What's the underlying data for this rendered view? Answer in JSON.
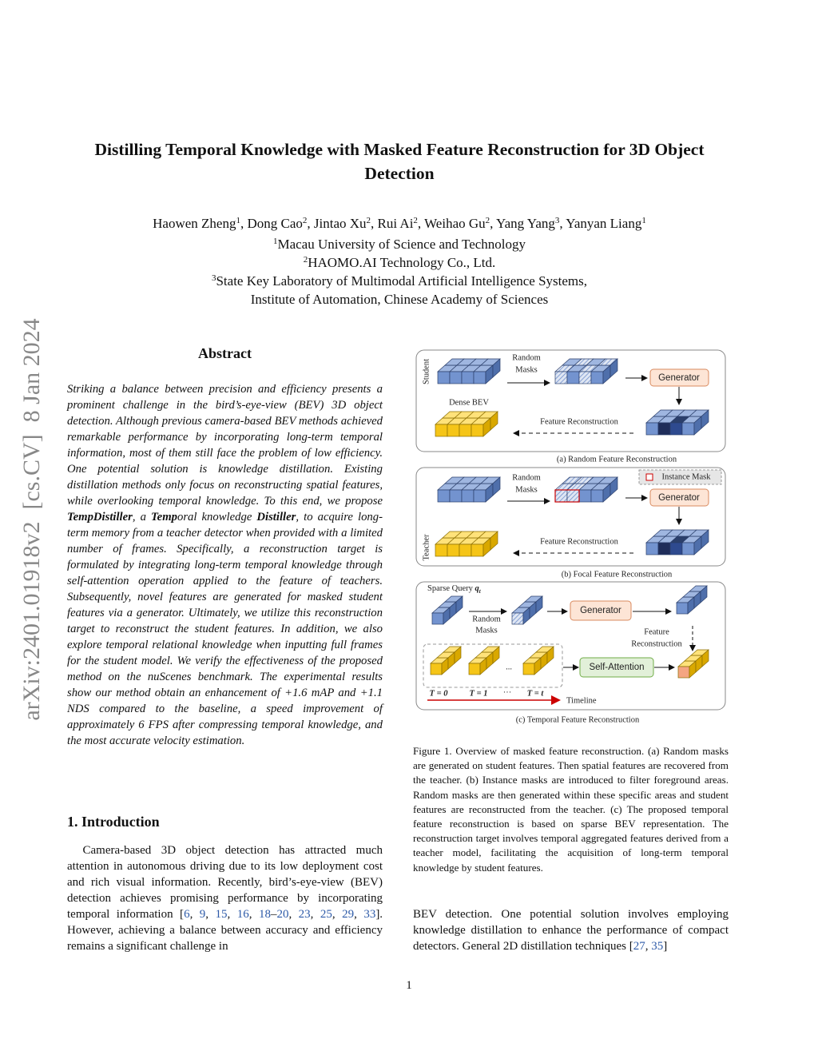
{
  "side_id": "arXiv:2401.01918v2  [cs.CV]  8 Jan 2024",
  "title": "Distilling Temporal Knowledge with Masked Feature Reconstruction for 3D Object Detection",
  "authors": [
    {
      "name": "Haowen Zheng",
      "sup": "1"
    },
    {
      "name": ", Dong Cao",
      "sup": "2"
    },
    {
      "name": ", Jintao Xu",
      "sup": "2"
    },
    {
      "name": ", Rui Ai",
      "sup": "2"
    },
    {
      "name": ", Weihao Gu",
      "sup": "2"
    },
    {
      "name": ", Yang Yang",
      "sup": "3"
    },
    {
      "name": ", Yanyan Liang",
      "sup": "1"
    }
  ],
  "affiliations": [
    {
      "sup": "1",
      "lines": [
        "Macau University of Science and Technology"
      ]
    },
    {
      "sup": "2",
      "lines": [
        "HAOMO.AI Technology Co., Ltd."
      ]
    },
    {
      "sup": "3",
      "lines": [
        "State Key Laboratory of Multimodal Artificial Intelligence Systems,",
        "Institute of Automation, Chinese Academy of Sciences"
      ]
    }
  ],
  "abstract": {
    "heading": "Abstract",
    "segments": [
      {
        "text": "Striking a balance between precision and efficiency presents a prominent challenge in the bird’s-eye-view (BEV) 3D object detection. Although previous camera-based BEV methods achieved remarkable performance by incorporating long-term temporal information, most of them still face the problem of low efficiency.  One potential solution is knowledge distillation.  Existing distillation methods only focus on reconstructing spatial features, while overlooking temporal knowledge.  To this end, we propose "
      },
      {
        "text": "TempDistiller",
        "bold": true
      },
      {
        "text": ", a "
      },
      {
        "text": "Temp",
        "bold": true
      },
      {
        "text": "oral knowledge "
      },
      {
        "text": "Distiller",
        "bold": true
      },
      {
        "text": ", to acquire long-term memory from a teacher detector when provided with a limited number of frames.  Specifically, a reconstruction target is formulated by integrating long-term temporal knowledge through self-attention operation applied to the feature of teachers. Subsequently, novel features are generated for masked student features via a generator.  Ultimately, we utilize this reconstruction target to reconstruct the student features. In addition, we also explore temporal relational knowledge when inputting full frames for the student model. We verify the effectiveness of the proposed method on the nuScenes benchmark.  The experimental results show our method obtain an enhancement of +1.6 mAP and +1.1 NDS compared to the baseline, a speed improvement of approximately 6 FPS after compressing temporal knowledge, and the most accurate velocity estimation."
      }
    ]
  },
  "introduction": {
    "heading": "1. Introduction",
    "segments": [
      {
        "text": "Camera-based 3D object detection has attracted much attention in autonomous driving due to its low deployment cost and rich visual information.  Recently, bird’s-eye-view (BEV) detection achieves promising performance by incorporating temporal information ["
      },
      {
        "text": "6",
        "link": true
      },
      {
        "text": ", "
      },
      {
        "text": "9",
        "link": true
      },
      {
        "text": ", "
      },
      {
        "text": "15",
        "link": true
      },
      {
        "text": ", "
      },
      {
        "text": "16",
        "link": true
      },
      {
        "text": ", "
      },
      {
        "text": "18",
        "link": true
      },
      {
        "text": "–"
      },
      {
        "text": "20",
        "link": true
      },
      {
        "text": ", "
      },
      {
        "text": "23",
        "link": true
      },
      {
        "text": ", "
      },
      {
        "text": "25",
        "link": true
      },
      {
        "text": ", "
      },
      {
        "text": "29",
        "link": true
      },
      {
        "text": ", "
      },
      {
        "text": "33",
        "link": true
      },
      {
        "text": "]. However, achieving a balance between accuracy and efficiency remains a significant challenge in"
      }
    ]
  },
  "figure": {
    "panel_a": {
      "student": "Student",
      "random_masks": [
        "Random",
        "Masks"
      ],
      "dense_bev": "Dense BEV",
      "generator": "Generator",
      "feature_reconstruction": "Feature Reconstruction",
      "caption": "(a) Random Feature Reconstruction"
    },
    "panel_b": {
      "instance_mask": "Instance Mask",
      "random_masks": [
        "Random",
        "Masks"
      ],
      "generator": "Generator",
      "teacher": "Teacher",
      "feature_reconstruction": "Feature Reconstruction",
      "caption": "(b) Focal Feature Reconstruction"
    },
    "panel_c": {
      "sparse_query": "Sparse Query",
      "query_symbol": "q",
      "query_sub": "t",
      "random_masks": [
        "Random",
        "Masks"
      ],
      "generator": "Generator",
      "feature_reconstruction": [
        "Feature",
        "Reconstruction"
      ],
      "ellipsis": "...",
      "self_attention": "Self-Attention",
      "time_labels": [
        "T = 0",
        "T = 1",
        "···",
        "T = t"
      ],
      "timeline": "Timeline",
      "caption": "(c) Temporal Feature Reconstruction"
    },
    "caption": "Figure 1. Overview of masked feature reconstruction. (a) Random masks are generated on student features. Then spatial features are recovered from the teacher.  (b) Instance masks are introduced to filter foreground areas. Random masks are then generated within these specific areas and student features are reconstructed from the teacher. (c) The proposed temporal feature reconstruction is based on sparse BEV representation. The reconstruction target involves temporal aggregated features derived from a teacher model, facilitating the acquisition of long-term temporal knowledge by student features."
  },
  "continuation": {
    "segments": [
      {
        "text": "BEV detection. One potential solution involves employing knowledge distillation to enhance the performance of compact detectors.  General 2D distillation techniques ["
      },
      {
        "text": "27",
        "link": true
      },
      {
        "text": ", "
      },
      {
        "text": "35",
        "link": true
      },
      {
        "text": "]"
      }
    ]
  },
  "page_number": "1"
}
